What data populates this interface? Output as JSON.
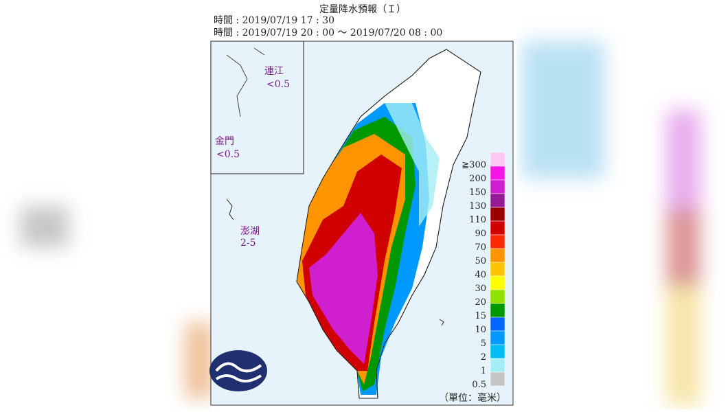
{
  "header": {
    "title": "定量降水預報（Ｉ）",
    "issue_time": "時間 : 2019/07/19 17 : 30",
    "valid_time": "時間 : 2019/07/19 20 : 00 ～ 2019/07/20 08 : 00"
  },
  "islands": [
    {
      "name": "連江",
      "amount": "<0.5"
    },
    {
      "name": "金門",
      "amount": "<0.5"
    },
    {
      "name": "澎湖",
      "amount": "2-5"
    }
  ],
  "legend": {
    "unit": "（單位：毫米）",
    "items": [
      {
        "label": "≧300",
        "color": "#fbc8f3"
      },
      {
        "label": "200",
        "color": "#f515e6"
      },
      {
        "label": "150",
        "color": "#cf1fcf"
      },
      {
        "label": "130",
        "color": "#961c96"
      },
      {
        "label": "110",
        "color": "#9b0000"
      },
      {
        "label": "90",
        "color": "#d00000"
      },
      {
        "label": "70",
        "color": "#fe2b00"
      },
      {
        "label": "50",
        "color": "#fe9400"
      },
      {
        "label": "40",
        "color": "#fdc300"
      },
      {
        "label": "30",
        "color": "#fefe00"
      },
      {
        "label": "20",
        "color": "#8fe100"
      },
      {
        "label": "15",
        "color": "#009800"
      },
      {
        "label": "10",
        "color": "#0066ff"
      },
      {
        "label": "5",
        "color": "#0099ff"
      },
      {
        "label": "2",
        "color": "#00bdf2"
      },
      {
        "label": "1",
        "color": "#a4edf4"
      },
      {
        "label": "0.5",
        "color": "#c4c4c4"
      }
    ]
  }
}
